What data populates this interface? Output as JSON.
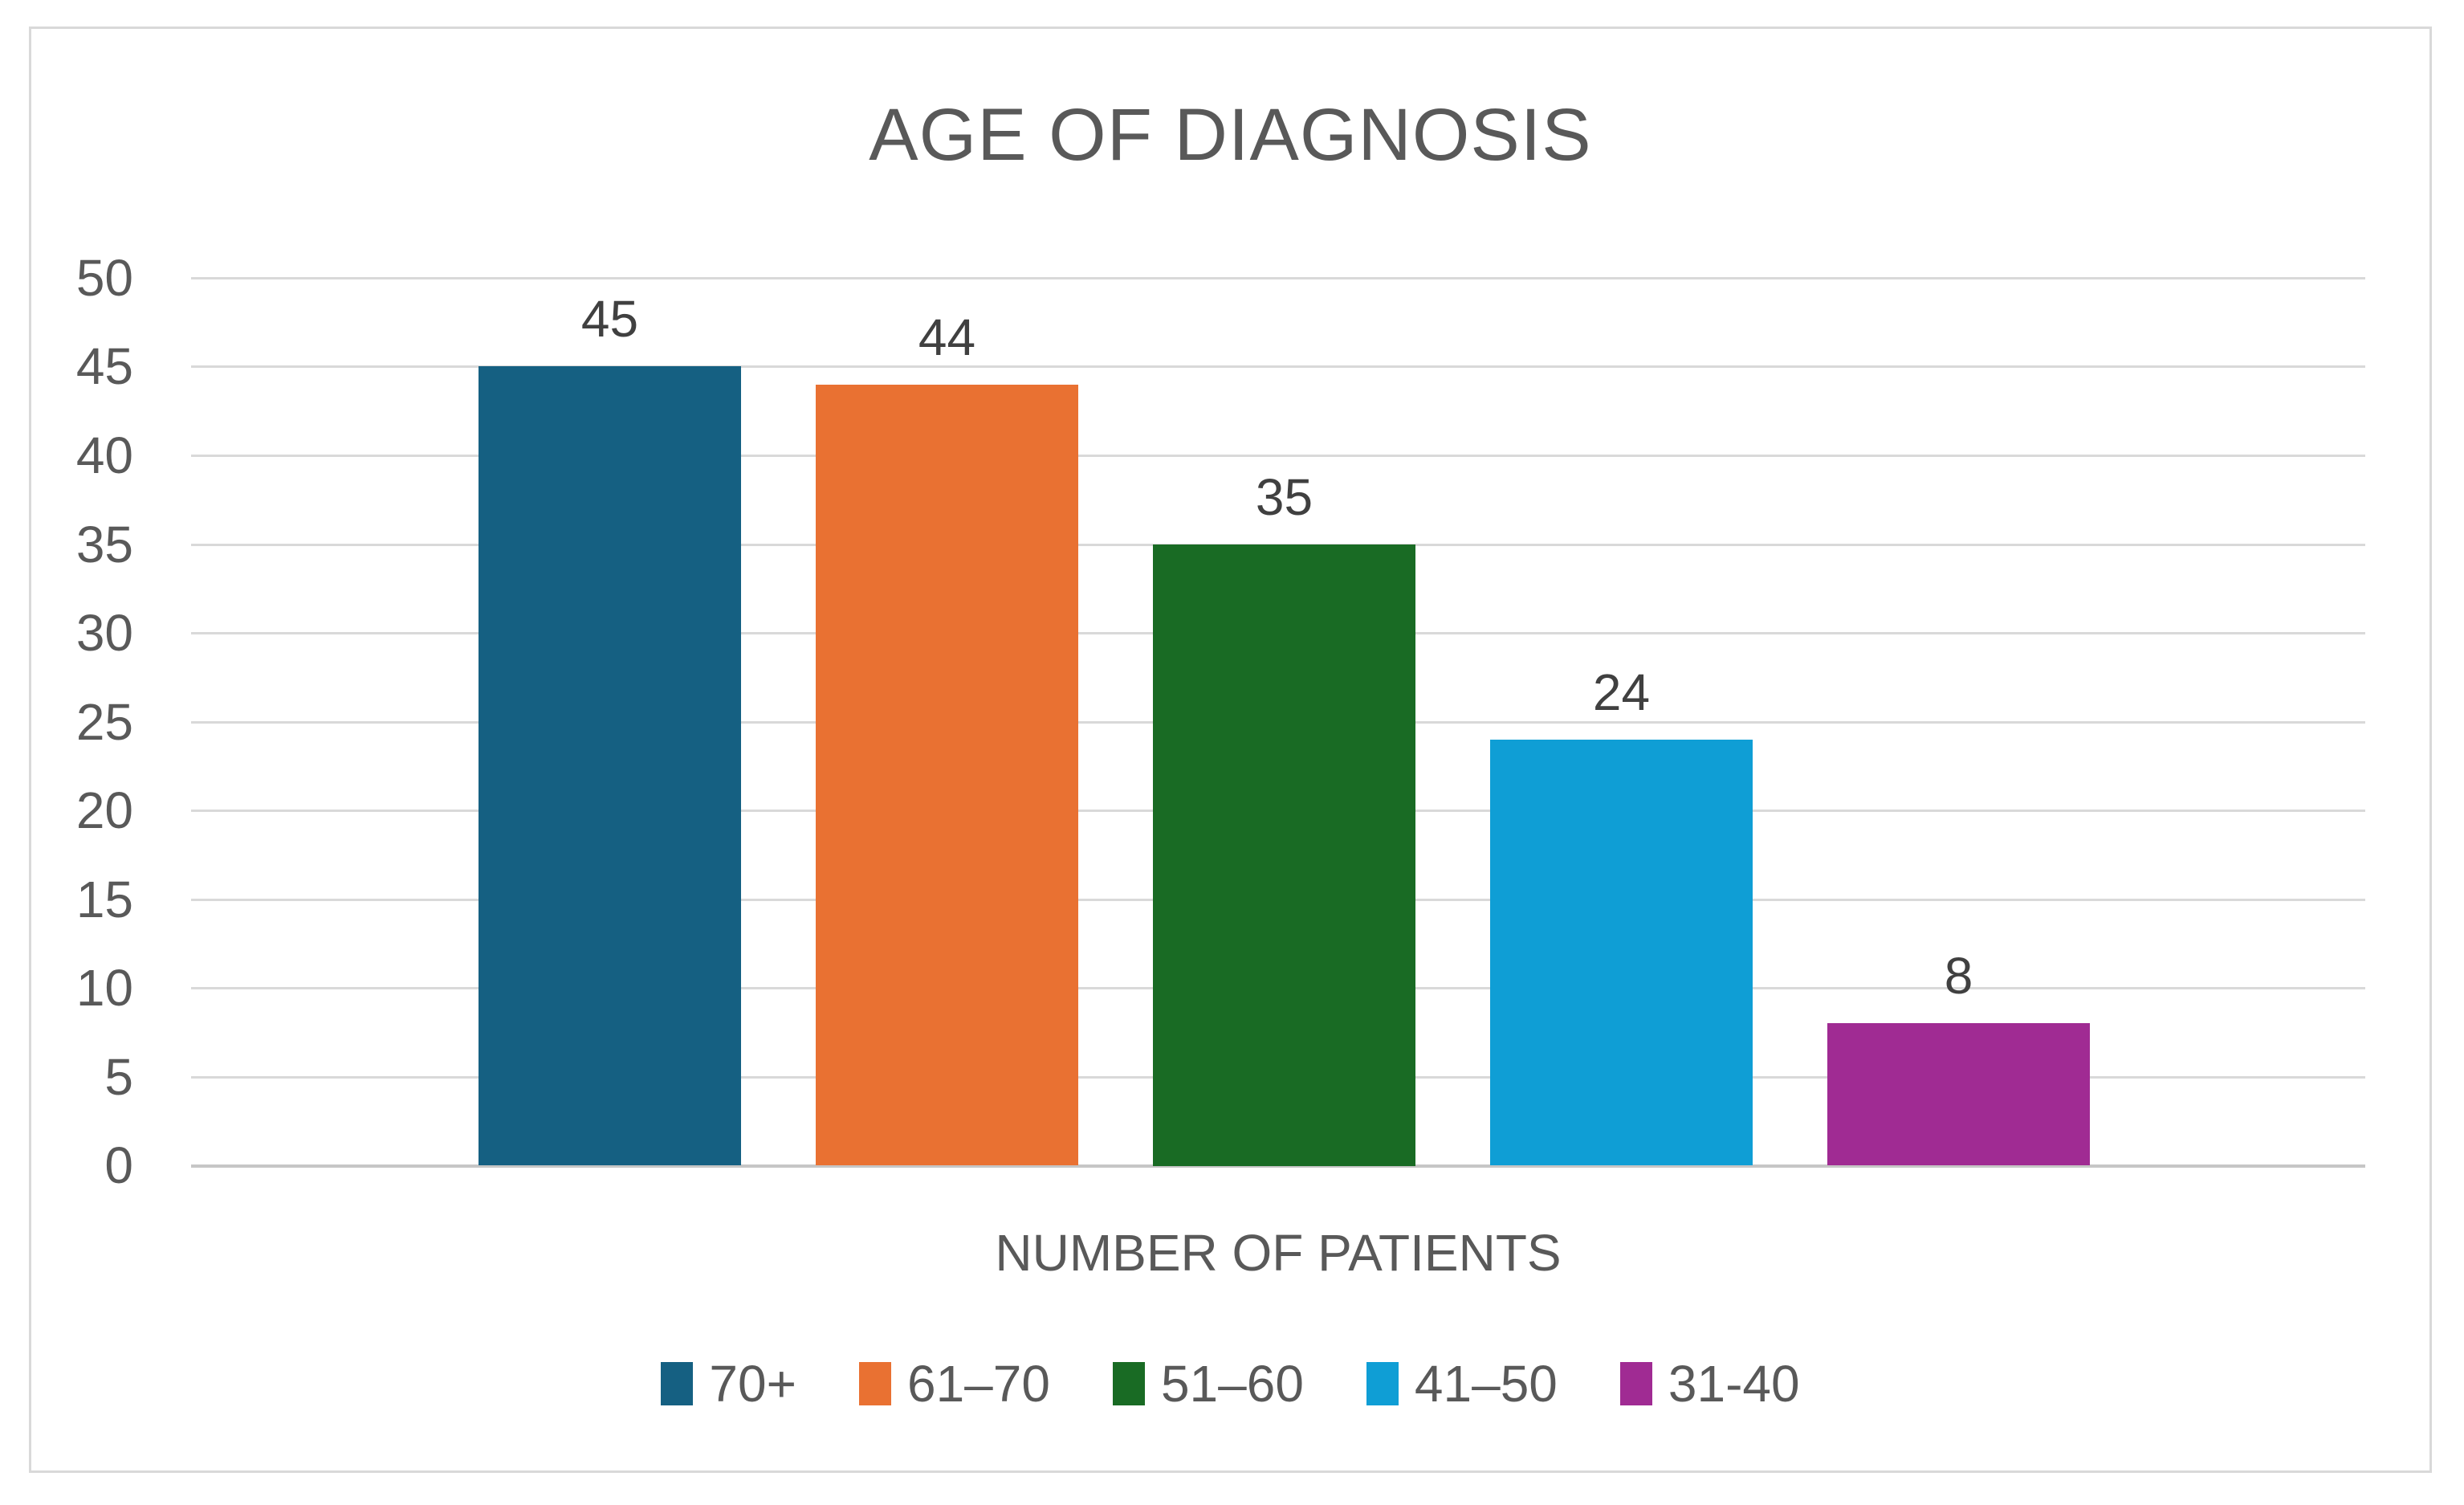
{
  "chart_data": {
    "type": "bar",
    "title": "AGE OF DIAGNOSIS",
    "xlabel": "NUMBER OF PATIENTS",
    "ylabel": "",
    "categories": [
      "70+",
      "61–70",
      "51–60",
      "41–50",
      "31-40"
    ],
    "values": [
      45,
      44,
      35,
      24,
      8
    ],
    "data_labels": [
      "45",
      "44",
      "35",
      "24",
      "8"
    ],
    "colors": [
      "#156082",
      "#e97132",
      "#196b24",
      "#0f9ed5",
      "#a02b93"
    ],
    "ylim": [
      0,
      50
    ],
    "yticks": [
      "0",
      "5",
      "10",
      "15",
      "20",
      "25",
      "30",
      "35",
      "40",
      "45",
      "50"
    ],
    "ytick_step": 5,
    "grid": true,
    "legend_position": "bottom",
    "show_data_labels": true
  },
  "style_colors": {
    "gridline": "#d9d9d9",
    "axis_baseline": "#c6c6c6",
    "frame_border": "#d9d9d9",
    "axis_text": "#595959",
    "title_text": "#595959",
    "data_label_text": "#404040",
    "background": "#ffffff"
  }
}
